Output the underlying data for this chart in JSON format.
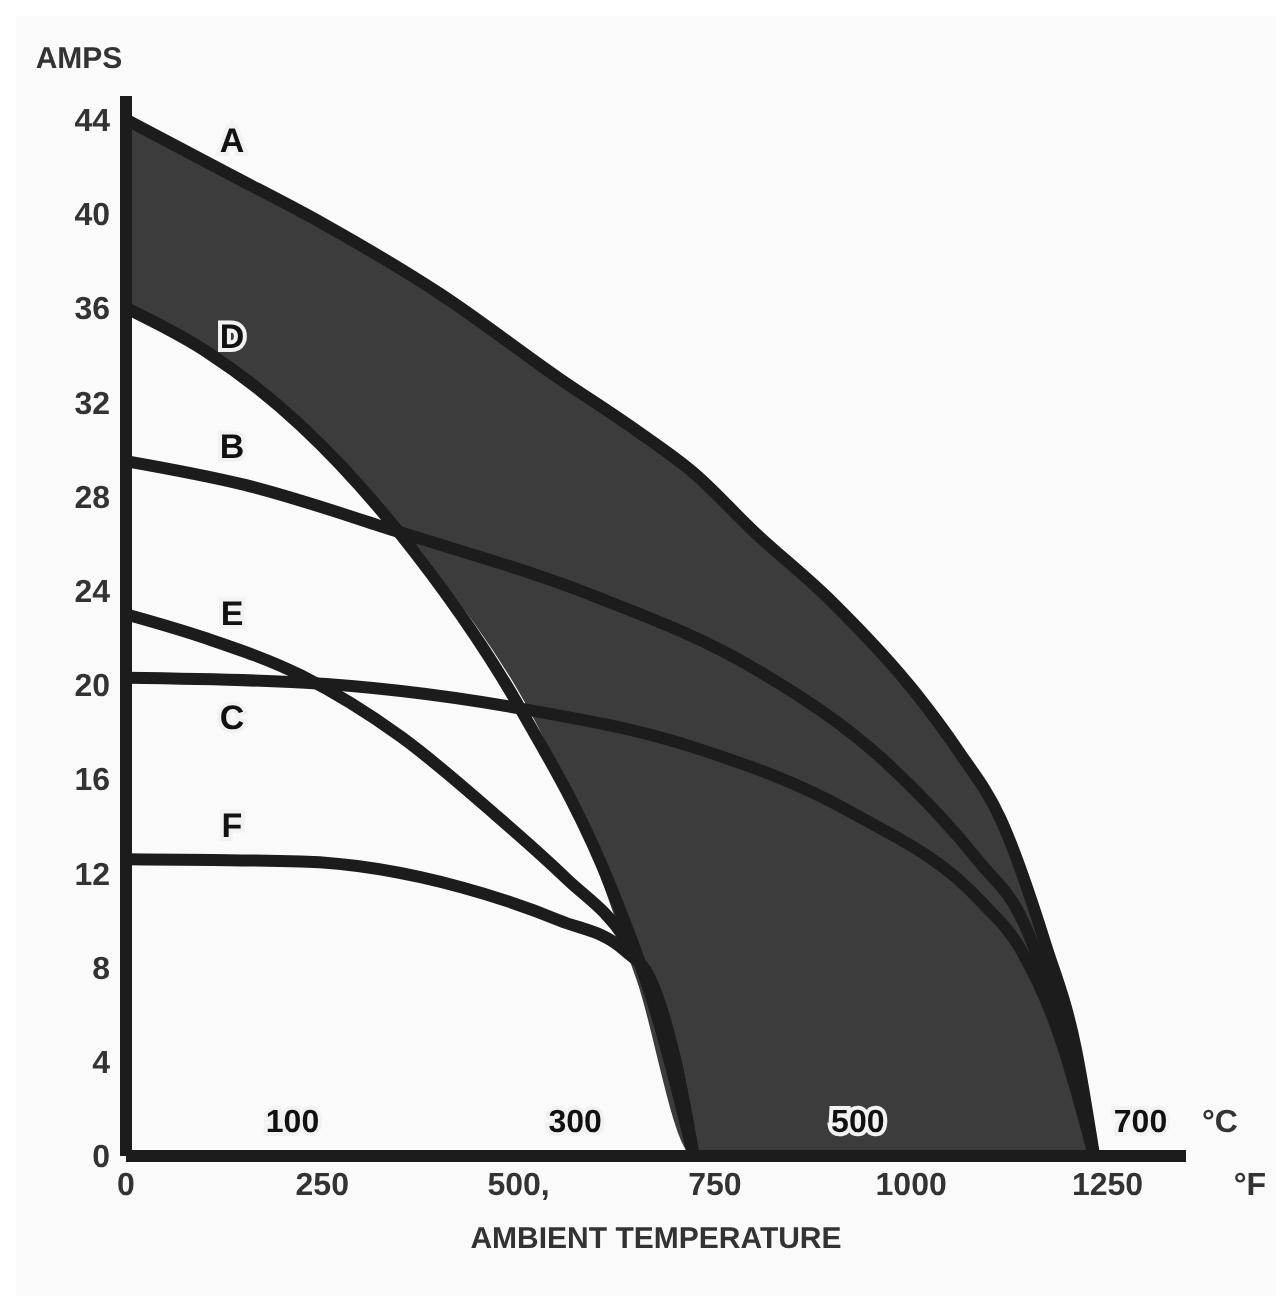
{
  "chart_data": {
    "type": "line",
    "ylabel": "AMPS",
    "xlabel": "AMBIENT TEMPERATURE",
    "x2label": "°C",
    "annotations": [
      "°F"
    ],
    "xlim": [
      0,
      1350
    ],
    "xticks": [
      0,
      250,
      {
        "value": 500,
        "label": "500,"
      },
      750,
      1000,
      1250
    ],
    "x2lim": [
      -17.8,
      732.2
    ],
    "x2ticks": [
      100,
      300,
      500,
      700
    ],
    "ylim": [
      0,
      45
    ],
    "yticks": [
      0,
      4,
      8,
      12,
      16,
      20,
      24,
      28,
      32,
      36,
      40,
      44
    ],
    "grid": false,
    "legend": false,
    "marker": "none",
    "line_style": "solid",
    "series": [
      {
        "name": "A",
        "color": "#1c1c1c",
        "x": [
          0,
          125,
          250,
          400,
          552,
          650,
          723,
          800,
          900,
          1007,
          1060,
          1114,
          1171,
          1210,
          1233
        ],
        "values": [
          44,
          41.8,
          39.6,
          36.6,
          33,
          30.8,
          29,
          26.5,
          23.5,
          19.6,
          17.2,
          14.3,
          9,
          4.5,
          0
        ],
        "lower": [
          36,
          33.8,
          30.2,
          24.6,
          16.3,
          7.5,
          0,
          0,
          0,
          0,
          0,
          0,
          0,
          0,
          0
        ],
        "upper": [
          44,
          41.8,
          39.6,
          36.6,
          33,
          30.8,
          29,
          26.5,
          23.5,
          19.6,
          17.2,
          14.3,
          9,
          4.5,
          0
        ]
      },
      {
        "name": "D",
        "color": "#1c1c1c",
        "x": [
          0,
          100,
          223,
          347,
          502,
          619,
          676,
          723
        ],
        "values": [
          36,
          34.2,
          31,
          26.5,
          19,
          11.3,
          6,
          0
        ]
      },
      {
        "name": "B",
        "color": "#1c1c1c",
        "x": [
          0,
          150,
          347,
          594,
          800,
          965,
          1089,
          1139,
          1190,
          1233
        ],
        "values": [
          29.5,
          28.5,
          26.5,
          23.8,
          20.7,
          16.8,
          12.4,
          10.2,
          5.5,
          0
        ]
      },
      {
        "name": "E",
        "color": "#1c1c1c",
        "x": [
          0,
          100,
          223,
          350,
          470,
          560,
          636,
          668,
          700,
          723
        ],
        "values": [
          23,
          22,
          20.4,
          17.8,
          14.5,
          11.8,
          9.2,
          7.3,
          4,
          0
        ]
      },
      {
        "name": "C",
        "color": "#1c1c1c",
        "x": [
          0,
          223,
          502,
          718,
          923,
          1089,
          1139,
          1190,
          1233
        ],
        "values": [
          20.3,
          20.1,
          19,
          17.4,
          14.6,
          10.8,
          8.8,
          5,
          0
        ]
      },
      {
        "name": "F",
        "color": "#1c1c1c",
        "x": [
          0,
          223,
          428,
          552,
          636,
          668,
          700,
          723
        ],
        "values": [
          12.6,
          12.5,
          11.4,
          10,
          8.7,
          7.5,
          4,
          0
        ]
      }
    ]
  }
}
